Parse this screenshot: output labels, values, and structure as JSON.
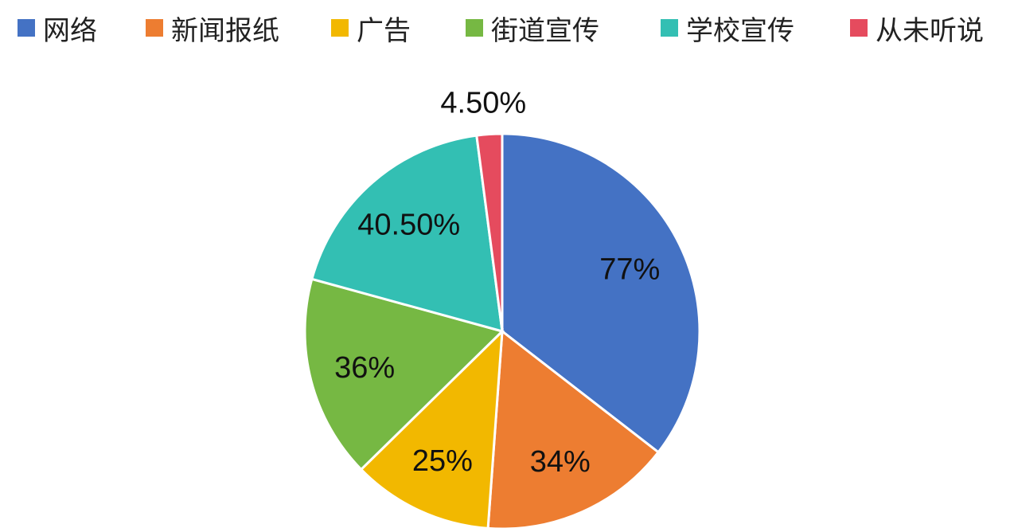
{
  "chart_data": {
    "type": "pie",
    "title": "",
    "legend_position": "top",
    "categories": [
      "网络",
      "新闻报纸",
      "广告",
      "街道宣传",
      "学校宣传",
      "从未听说"
    ],
    "values": [
      77,
      34,
      25,
      36,
      40.5,
      4.5
    ],
    "data_labels": [
      "77%",
      "34%",
      "25%",
      "36%",
      "40.50%",
      "4.50%"
    ],
    "colors": [
      "#4472C4",
      "#ED7D31",
      "#F2B800",
      "#76B843",
      "#33BFB3",
      "#E54B5E"
    ],
    "start_angle_deg": 0,
    "direction": "clockwise"
  }
}
